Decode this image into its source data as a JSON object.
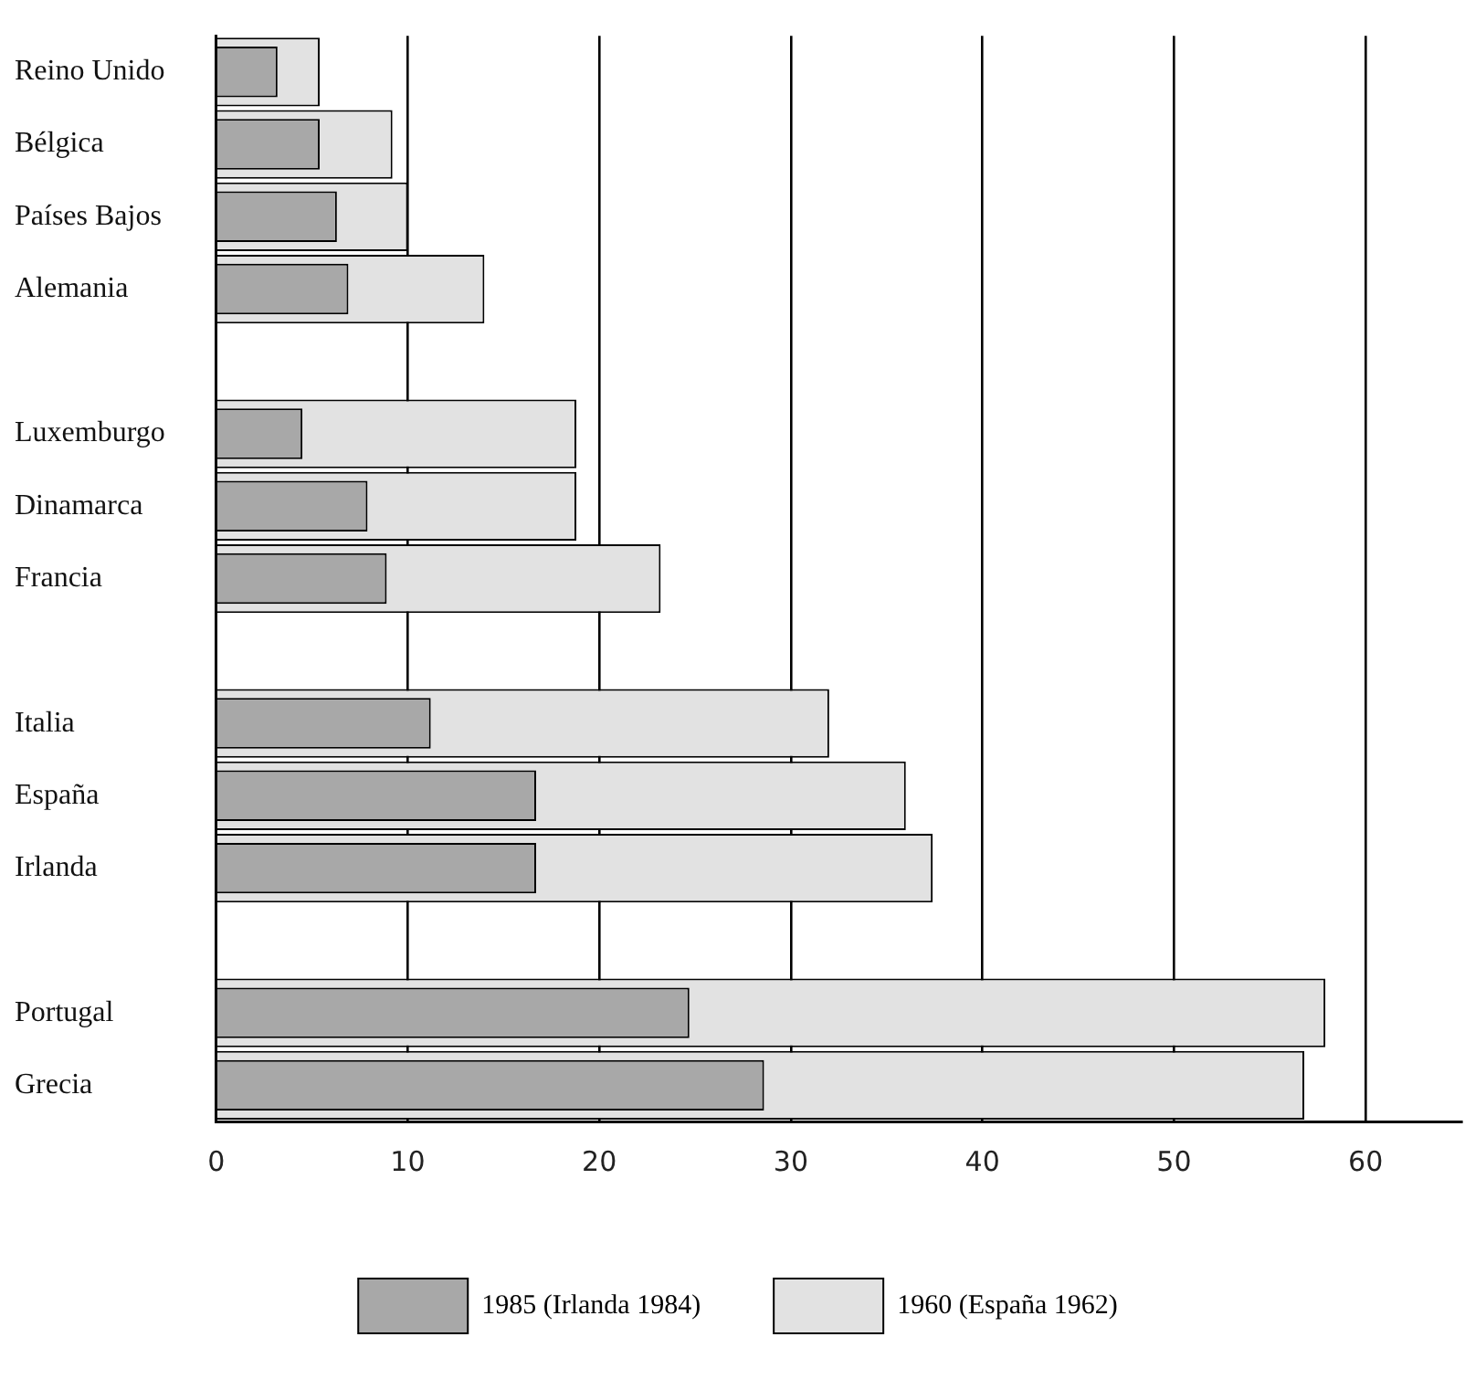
{
  "chart_data": {
    "type": "bar",
    "orientation": "horizontal",
    "categories": [
      "Reino Unido",
      "Bélgica",
      "Países Bajos",
      "Alemania",
      null,
      "Luxemburgo",
      "Dinamarca",
      "Francia",
      null,
      "Italia",
      "España",
      "Irlanda",
      null,
      "Portugal",
      "Grecia"
    ],
    "series": [
      {
        "name": "1960 (España 1962)",
        "color": "#e2e2e2",
        "values": [
          5.4,
          9.2,
          10.0,
          14.0,
          null,
          18.8,
          18.8,
          23.2,
          null,
          32.0,
          36.0,
          37.4,
          null,
          57.9,
          56.8
        ]
      },
      {
        "name": "1985 (Irlanda 1984)",
        "color": "#a8a8a8",
        "values": [
          3.2,
          5.4,
          6.3,
          6.9,
          null,
          4.5,
          7.9,
          8.9,
          null,
          11.2,
          16.7,
          16.7,
          null,
          24.7,
          28.6
        ]
      }
    ],
    "xlim": [
      0,
      65
    ],
    "xticks": [
      0,
      10,
      20,
      30,
      40,
      50,
      60
    ],
    "grid": "x",
    "legend": "bottom"
  }
}
